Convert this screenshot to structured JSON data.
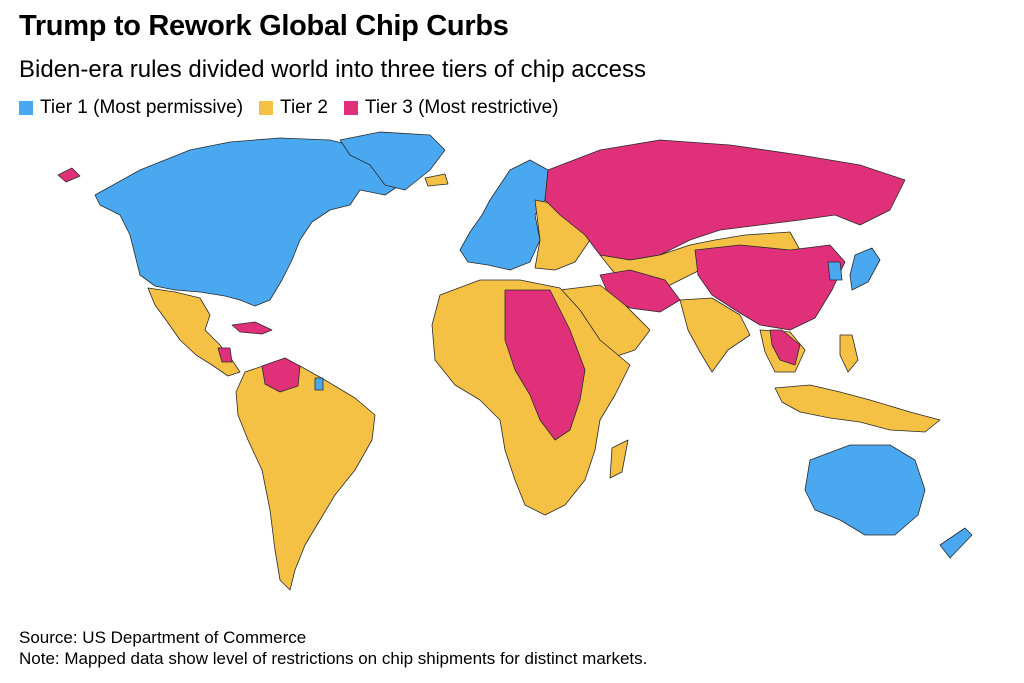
{
  "title": "Trump to Rework Global Chip Curbs",
  "subtitle": "Biden-era rules divided world into three tiers of chip access",
  "legend": [
    {
      "label": "Tier 1 (Most permissive)",
      "color": "#4aa8f0"
    },
    {
      "label": "Tier 2",
      "color": "#f4c145"
    },
    {
      "label": "Tier 3 (Most restrictive)",
      "color": "#e0307a"
    }
  ],
  "source": "Source: US Department of Commerce",
  "note": "Note: Mapped data show level of restrictions on chip shipments for distinct markets."
}
